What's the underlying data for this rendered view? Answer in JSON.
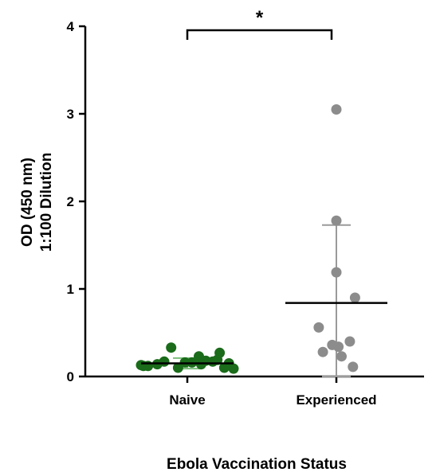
{
  "chart_data": {
    "type": "scatter",
    "xlabel": "Ebola Vaccination Status",
    "ylabel_line1": "OD (450 nm)",
    "ylabel_line2": "1:100 Dilution",
    "ylim": [
      0,
      4
    ],
    "yticks": [
      "0",
      "1",
      "2",
      "3",
      "4"
    ],
    "categories": [
      "Naive",
      "Experienced"
    ],
    "significance": "*",
    "grid": false,
    "series": [
      {
        "category": "Naive",
        "color": "#1a6b1a",
        "mean": 0.15,
        "sd": 0.06,
        "points": [
          0.13,
          0.18,
          0.17,
          0.15,
          0.12,
          0.16,
          0.1,
          0.19,
          0.14,
          0.23,
          0.1,
          0.33,
          0.17,
          0.12,
          0.14,
          0.27,
          0.16,
          0.09
        ]
      },
      {
        "category": "Experienced",
        "color": "#8c8c8c",
        "mean": 0.84,
        "sd": 0.89,
        "points": [
          3.05,
          1.78,
          1.19,
          0.9,
          0.56,
          0.34,
          0.36,
          0.4,
          0.28,
          0.23,
          0.11
        ]
      }
    ]
  }
}
